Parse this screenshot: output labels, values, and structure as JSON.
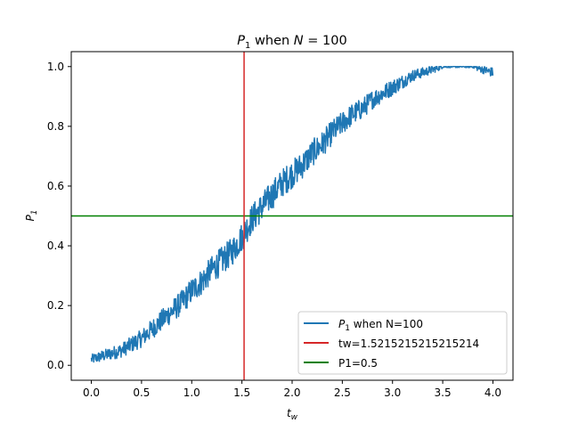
{
  "chart_data": {
    "type": "line",
    "title_main": "P",
    "title_sub": "1",
    "title_rest": " when ",
    "title_n": "N",
    "title_eq": " = 100",
    "xlabel_main": "t",
    "xlabel_sub": "w",
    "ylabel_main": "P",
    "ylabel_sub": "1",
    "xlim": [
      -0.2,
      4.2
    ],
    "ylim": [
      -0.05,
      1.05
    ],
    "xticks": [
      0.0,
      0.5,
      1.0,
      1.5,
      2.0,
      2.5,
      3.0,
      3.5,
      4.0
    ],
    "xtick_labels": [
      "0.0",
      "0.5",
      "1.0",
      "1.5",
      "2.0",
      "2.5",
      "3.0",
      "3.5",
      "4.0"
    ],
    "yticks": [
      0.0,
      0.2,
      0.4,
      0.6,
      0.8,
      1.0
    ],
    "ytick_labels": [
      "0.0",
      "0.2",
      "0.4",
      "0.6",
      "0.8",
      "1.0"
    ],
    "grid": false,
    "legend_position": "lower-right",
    "series": [
      {
        "legend_main": "P",
        "legend_sub": "1",
        "legend_rest": " when N=100",
        "color": "#1f77b4",
        "x": [
          0.0,
          0.1,
          0.2,
          0.3,
          0.4,
          0.5,
          0.6,
          0.7,
          0.8,
          0.9,
          1.0,
          1.1,
          1.2,
          1.3,
          1.4,
          1.5,
          1.6,
          1.7,
          1.8,
          1.9,
          2.0,
          2.1,
          2.2,
          2.3,
          2.4,
          2.5,
          2.6,
          2.7,
          2.8,
          2.9,
          3.0,
          3.1,
          3.2,
          3.3,
          3.4,
          3.5,
          3.6,
          3.7,
          3.8,
          3.9,
          4.0
        ],
        "y": [
          0.02,
          0.03,
          0.04,
          0.05,
          0.07,
          0.09,
          0.12,
          0.15,
          0.18,
          0.21,
          0.25,
          0.28,
          0.32,
          0.35,
          0.38,
          0.43,
          0.49,
          0.53,
          0.57,
          0.61,
          0.64,
          0.67,
          0.71,
          0.74,
          0.78,
          0.81,
          0.84,
          0.86,
          0.89,
          0.91,
          0.93,
          0.95,
          0.97,
          0.98,
          0.99,
          1.0,
          1.0,
          1.0,
          1.0,
          0.99,
          0.98
        ]
      },
      {
        "legend_text": "tw=1.5215215215215214",
        "color": "#d62728",
        "kind": "vline",
        "x": 1.5215215215215214
      },
      {
        "legend_text": "P1=0.5",
        "color": "#008000",
        "kind": "hline",
        "y": 0.5
      }
    ]
  }
}
